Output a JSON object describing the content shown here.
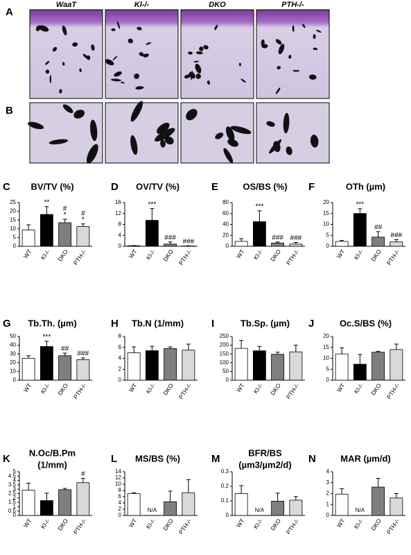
{
  "figure": {
    "panel_a": "A",
    "panel_b": "B",
    "genotypes": [
      "WaaT",
      "Kl-/-",
      "DKO",
      "PTH-/-"
    ]
  },
  "chart_data": [
    {
      "type": "bar",
      "panel": "C",
      "title": "BV/TV (%)",
      "categories": [
        "WT",
        "Kl-/-",
        "DKO",
        "PTH-/-"
      ],
      "colors": [
        "#ffffff",
        "#000000",
        "#7f7f7f",
        "#d9d9d9"
      ],
      "values": [
        9.3,
        18.2,
        13.5,
        11.3
      ],
      "errors": [
        3,
        4.5,
        2,
        1.5
      ],
      "significance": [
        null,
        [
          "**"
        ],
        [
          "#",
          "*"
        ],
        [
          "#",
          "*"
        ]
      ],
      "ylim": [
        0,
        25
      ],
      "yticks": [
        0,
        5,
        10,
        15,
        20,
        25
      ]
    },
    {
      "type": "bar",
      "panel": "D",
      "title": "OV/TV (%)",
      "categories": [
        "WT",
        "Kl-/-",
        "DKO",
        "PTH-/-"
      ],
      "colors": [
        "#ffffff",
        "#000000",
        "#7f7f7f",
        "#d9d9d9"
      ],
      "values": [
        0.2,
        9.5,
        0.8,
        0.1
      ],
      "errors": [
        0.1,
        4.3,
        0.8,
        0.1
      ],
      "significance": [
        null,
        [
          "***"
        ],
        [
          "###"
        ],
        [
          "###"
        ]
      ],
      "ylim": [
        0,
        16
      ],
      "yticks": [
        0,
        4,
        8,
        12,
        16
      ]
    },
    {
      "type": "bar",
      "panel": "E",
      "title": "OS/BS  (%)",
      "categories": [
        "WT",
        "Kl-/-",
        "DKO",
        "PTH-/-"
      ],
      "colors": [
        "#ffffff",
        "#000000",
        "#7f7f7f",
        "#d9d9d9"
      ],
      "values": [
        9,
        45,
        6,
        4
      ],
      "errors": [
        5,
        20,
        2,
        3
      ],
      "significance": [
        null,
        [
          "***"
        ],
        [
          "###"
        ],
        [
          "###"
        ]
      ],
      "ylim": [
        0,
        80
      ],
      "yticks": [
        0,
        20,
        40,
        60,
        80
      ]
    },
    {
      "type": "bar",
      "panel": "F",
      "title": "OTh (µm)",
      "categories": [
        "WT",
        "Kl-/-",
        "DKO",
        "PTH-/-"
      ],
      "colors": [
        "#ffffff",
        "#000000",
        "#7f7f7f",
        "#d9d9d9"
      ],
      "values": [
        2.2,
        15,
        4.2,
        2
      ],
      "errors": [
        0.5,
        2.2,
        2.5,
        1
      ],
      "significance": [
        null,
        [
          "***"
        ],
        [
          "##"
        ],
        [
          "###"
        ]
      ],
      "ylim": [
        0,
        20
      ],
      "yticks": [
        0,
        5,
        10,
        15,
        20
      ]
    },
    {
      "type": "bar",
      "panel": "G",
      "title": "Tb.Th.  (µm)",
      "categories": [
        "WT",
        "Kl-/-",
        "DKO",
        "PTH-/-"
      ],
      "colors": [
        "#ffffff",
        "#000000",
        "#7f7f7f",
        "#d9d9d9"
      ],
      "values": [
        25,
        38.5,
        28,
        23.5
      ],
      "errors": [
        3,
        6,
        3,
        2
      ],
      "significance": [
        null,
        [
          "***"
        ],
        [
          "##"
        ],
        [
          "###"
        ]
      ],
      "ylim": [
        0,
        50
      ],
      "yticks": [
        0,
        10,
        20,
        30,
        40,
        50
      ]
    },
    {
      "type": "bar",
      "panel": "H",
      "title": "Tb.N  (1/mm)",
      "categories": [
        "WT",
        "Kl-/-",
        "DKO",
        "PTH-/-"
      ],
      "colors": [
        "#ffffff",
        "#000000",
        "#7f7f7f",
        "#d9d9d9"
      ],
      "values": [
        5,
        5.4,
        5.8,
        5.5
      ],
      "errors": [
        1.1,
        0.8,
        0.3,
        1.1
      ],
      "ylim": [
        0,
        8
      ],
      "yticks": [
        0,
        2,
        4,
        6,
        8
      ]
    },
    {
      "type": "bar",
      "panel": "I",
      "title": "Tb.Sp.  (µm)",
      "categories": [
        "WT",
        "Kl-/-",
        "DKO",
        "PTH-/-"
      ],
      "colors": [
        "#ffffff",
        "#000000",
        "#7f7f7f",
        "#d9d9d9"
      ],
      "values": [
        182,
        168,
        148,
        162
      ],
      "errors": [
        45,
        25,
        12,
        38
      ],
      "ylim": [
        0,
        250
      ],
      "yticks": [
        0,
        50,
        100,
        150,
        200,
        250
      ]
    },
    {
      "type": "bar",
      "panel": "J",
      "title": "Oc.S/BS (%)",
      "categories": [
        "WT",
        "Kl-/-",
        "DKO",
        "PTH-/-"
      ],
      "colors": [
        "#ffffff",
        "#000000",
        "#7f7f7f",
        "#d9d9d9"
      ],
      "values": [
        12,
        7.3,
        12.8,
        14
      ],
      "errors": [
        2.8,
        4.5,
        0.4,
        2.5
      ],
      "ylim": [
        0,
        20
      ],
      "yticks": [
        0,
        5,
        10,
        15,
        20
      ]
    },
    {
      "type": "bar",
      "panel": "K",
      "title": "N.Oc/B.Pm",
      "subtitle": "(1/mm)",
      "categories": [
        "WT",
        "Kl-/-",
        "DKO",
        "PTH-/-"
      ],
      "colors": [
        "#ffffff",
        "#000000",
        "#7f7f7f",
        "#d9d9d9"
      ],
      "values": [
        2.9,
        1.7,
        2.95,
        3.75
      ],
      "errors": [
        0.8,
        0.85,
        0.15,
        0.5
      ],
      "significance": [
        null,
        null,
        null,
        [
          "#"
        ]
      ],
      "ylim": [
        0,
        5
      ],
      "yticks": [
        0,
        0.5,
        1,
        1.5,
        2,
        2.5,
        3,
        3.5,
        4,
        4.5,
        5
      ]
    },
    {
      "type": "bar",
      "panel": "L",
      "title": "MS/BS (%)",
      "categories": [
        "WT",
        "Kl-/-",
        "DKO",
        "PTH-/-"
      ],
      "colors": [
        "#ffffff",
        "#000000",
        "#7f7f7f",
        "#d9d9d9"
      ],
      "values": [
        7,
        null,
        4.4,
        7.3
      ],
      "value_labels": [
        null,
        "N/A",
        null,
        null
      ],
      "errors": [
        0.3,
        null,
        3.4,
        4.2
      ],
      "ylim": [
        0,
        14
      ],
      "yticks": [
        0,
        2,
        4,
        6,
        8,
        10,
        12,
        14
      ]
    },
    {
      "type": "bar",
      "panel": "M",
      "title": "BFR/BS",
      "subtitle": "(µm3/µm2/d)",
      "categories": [
        "WT",
        "Kl-/-",
        "DKO",
        "PTH-/-"
      ],
      "colors": [
        "#ffffff",
        "#000000",
        "#7f7f7f",
        "#d9d9d9"
      ],
      "values": [
        0.15,
        null,
        0.098,
        0.105
      ],
      "value_labels": [
        null,
        "N/A",
        null,
        null
      ],
      "errors": [
        0.055,
        null,
        0.055,
        0.025
      ],
      "ylim": [
        0,
        0.3
      ],
      "yticks": [
        0,
        0.1,
        0.2,
        0.3
      ]
    },
    {
      "type": "bar",
      "panel": "N",
      "title": "MAR  (µm/d)",
      "categories": [
        "WT",
        "Kl-/-",
        "DKO",
        "PTH-/-"
      ],
      "colors": [
        "#ffffff",
        "#000000",
        "#7f7f7f",
        "#d9d9d9"
      ],
      "values": [
        1.95,
        null,
        2.6,
        1.6
      ],
      "value_labels": [
        null,
        "N/A",
        null,
        null
      ],
      "errors": [
        0.5,
        null,
        0.8,
        0.4
      ],
      "ylim": [
        0,
        4
      ],
      "yticks": [
        0,
        1,
        2,
        3,
        4
      ]
    }
  ]
}
